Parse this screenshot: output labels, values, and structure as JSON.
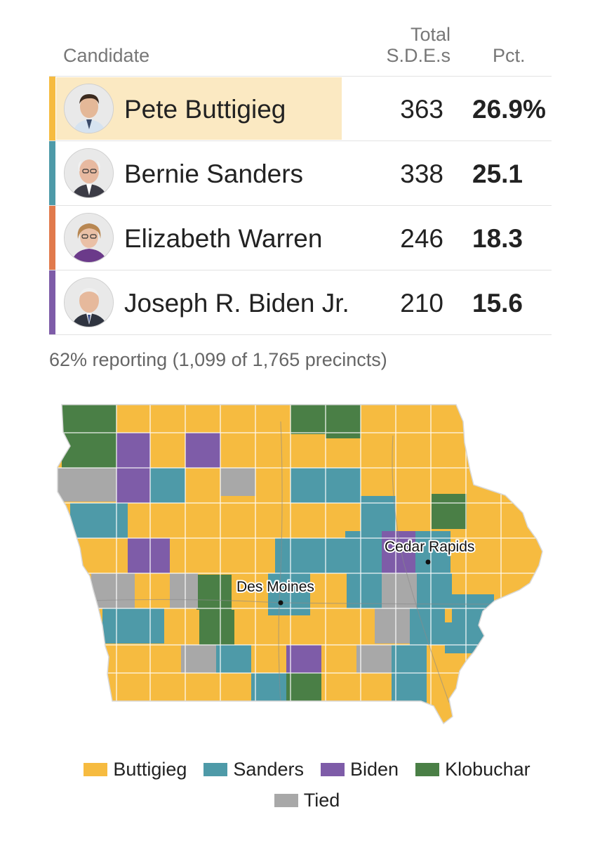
{
  "table": {
    "header_candidate": "Candidate",
    "header_total_line1": "Total",
    "header_total_line2": "S.D.E.s",
    "header_pct": "Pct.",
    "rows": [
      {
        "name": "Pete Buttigieg",
        "sdes": "363",
        "pct": "26.9%",
        "color": "#f6bb40",
        "leading": true
      },
      {
        "name": "Bernie Sanders",
        "sdes": "338",
        "pct": "25.1",
        "color": "#4e9aa8",
        "leading": false
      },
      {
        "name": "Elizabeth Warren",
        "sdes": "246",
        "pct": "18.3",
        "color": "#e17a4c",
        "leading": false
      },
      {
        "name": "Joseph R. Biden Jr.",
        "sdes": "210",
        "pct": "15.6",
        "color": "#7e5ca8",
        "leading": false
      }
    ],
    "highlight_color": "#fbe9c2"
  },
  "reporting": "62% reporting (1,099 of 1,765 precincts)",
  "map": {
    "region": "Iowa",
    "cities": [
      "Des Moines",
      "Cedar Rapids"
    ],
    "colors": {
      "Buttigieg": "#f6bb40",
      "Sanders": "#4e9aa8",
      "Biden": "#7e5ca8",
      "Klobuchar": "#4a7f46",
      "Tied": "#a8a8a8"
    }
  },
  "legend": {
    "items": [
      {
        "label": "Buttigieg",
        "color": "#f6bb40"
      },
      {
        "label": "Sanders",
        "color": "#4e9aa8"
      },
      {
        "label": "Biden",
        "color": "#7e5ca8"
      },
      {
        "label": "Klobuchar",
        "color": "#4a7f46"
      },
      {
        "label": "Tied",
        "color": "#a8a8a8"
      }
    ]
  }
}
